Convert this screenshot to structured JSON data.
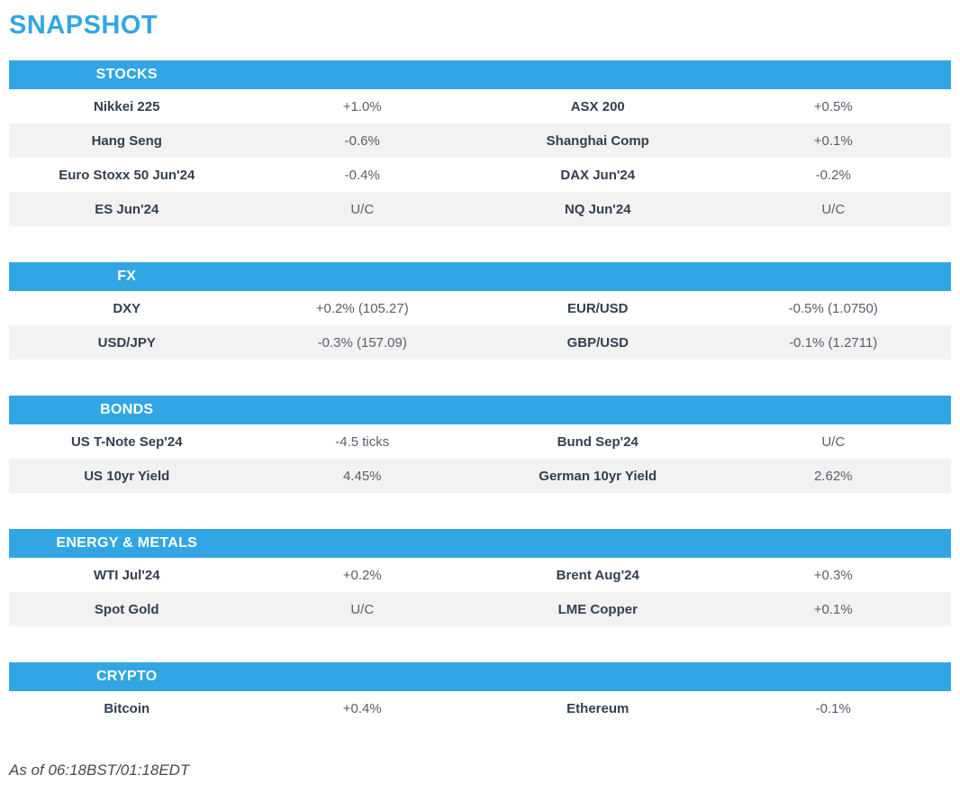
{
  "page": {
    "title": "SNAPSHOT",
    "footer": "As of 06:18BST/01:18EDT"
  },
  "colors": {
    "accent_blue": "#32A6E4",
    "stripe_gray": "#F2F2F2",
    "label_text": "#333F50",
    "value_text": "#575F6B"
  },
  "sections": [
    {
      "header": "STOCKS",
      "rows": [
        {
          "label1": "Nikkei 225",
          "value1": "+1.0%",
          "label2": "ASX 200",
          "value2": "+0.5%"
        },
        {
          "label1": "Hang Seng",
          "value1": "-0.6%",
          "label2": "Shanghai Comp",
          "value2": "+0.1%"
        },
        {
          "label1": "Euro Stoxx 50 Jun'24",
          "value1": "-0.4%",
          "label2": "DAX Jun'24",
          "value2": "-0.2%"
        },
        {
          "label1": "ES Jun'24",
          "value1": "U/C",
          "label2": "NQ Jun'24",
          "value2": "U/C"
        }
      ]
    },
    {
      "header": "FX",
      "rows": [
        {
          "label1": "DXY",
          "value1": "+0.2% (105.27)",
          "label2": "EUR/USD",
          "value2": "-0.5% (1.0750)"
        },
        {
          "label1": "USD/JPY",
          "value1": "-0.3% (157.09)",
          "label2": "GBP/USD",
          "value2": "-0.1% (1.2711)"
        }
      ]
    },
    {
      "header": "BONDS",
      "rows": [
        {
          "label1": "US T-Note Sep'24",
          "value1": "-4.5 ticks",
          "label2": "Bund Sep'24",
          "value2": "U/C"
        },
        {
          "label1": "US 10yr Yield",
          "value1": "4.45%",
          "label2": "German 10yr Yield",
          "value2": "2.62%"
        }
      ]
    },
    {
      "header": "ENERGY & METALS",
      "rows": [
        {
          "label1": "WTI Jul'24",
          "value1": "+0.2%",
          "label2": "Brent Aug'24",
          "value2": "+0.3%"
        },
        {
          "label1": "Spot Gold",
          "value1": "U/C",
          "label2": "LME Copper",
          "value2": "+0.1%"
        }
      ]
    },
    {
      "header": "CRYPTO",
      "rows": [
        {
          "label1": "Bitcoin",
          "value1": "+0.4%",
          "label2": "Ethereum",
          "value2": "-0.1%"
        }
      ]
    }
  ]
}
